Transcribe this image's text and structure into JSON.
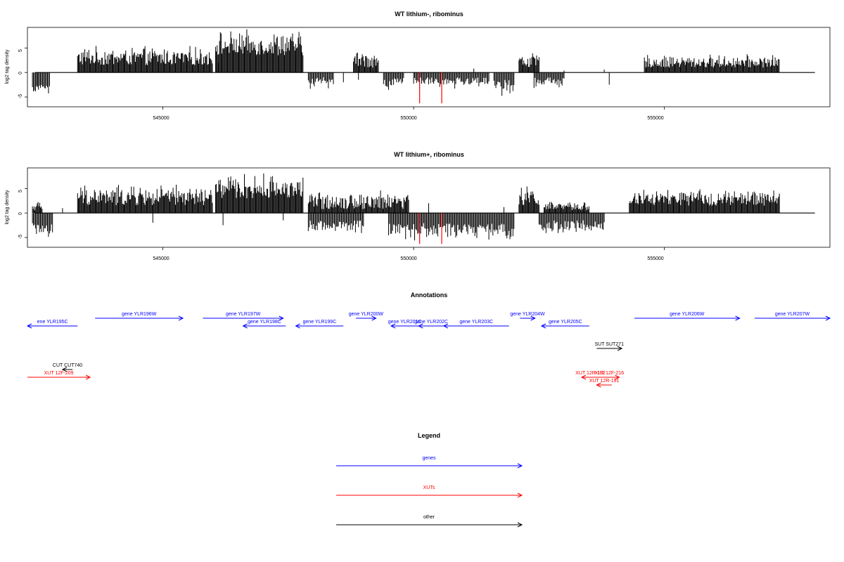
{
  "colors": {
    "gene": "#0000ff",
    "xut": "#ff0000",
    "other": "#000000",
    "bar": "#000000",
    "highlight": "#ff0000"
  },
  "panels": [
    {
      "title": "WT lithium-, ribominus",
      "ylabel": "log2 tag density",
      "y_ticks": [
        "-5",
        "0",
        "5"
      ],
      "x_ticks": [
        {
          "value": 545000,
          "label": "545000"
        },
        {
          "value": 550000,
          "label": "550000"
        },
        {
          "value": 555000,
          "label": "555000"
        }
      ],
      "xlim": [
        542300,
        558300
      ],
      "ylim": [
        -7,
        9.2
      ],
      "highlight_positions": [
        550120,
        550560
      ],
      "highlight_value": -6.3,
      "plus_regions": [
        {
          "start": 543300,
          "end": 546000,
          "hi": 5.5,
          "lo": 1.5
        },
        {
          "start": 546050,
          "end": 547800,
          "hi": 8.8,
          "lo": 3.5
        },
        {
          "start": 548800,
          "end": 549300,
          "hi": 5.0,
          "lo": 1.0
        },
        {
          "start": 552100,
          "end": 552500,
          "hi": 4.3,
          "lo": 1.0
        },
        {
          "start": 554600,
          "end": 557300,
          "hi": 3.8,
          "lo": 1.0
        }
      ],
      "sparse_plus": [
        {
          "x": 546100,
          "v": 2.0
        },
        {
          "x": 551200,
          "v": 0.8
        },
        {
          "x": 553000,
          "v": 0.4
        },
        {
          "x": 553800,
          "v": 0.6
        }
      ],
      "minus_regions": [
        {
          "start": 542400,
          "end": 542750,
          "lo": -4.5,
          "hi": -2.5
        },
        {
          "start": 547900,
          "end": 548400,
          "lo": -4.0,
          "hi": -1.0
        },
        {
          "start": 549400,
          "end": 549800,
          "lo": -4.2,
          "hi": -1.0
        },
        {
          "start": 550000,
          "end": 551500,
          "lo": -3.5,
          "hi": -1.0
        },
        {
          "start": 551600,
          "end": 552000,
          "lo": -5.4,
          "hi": -1.5
        },
        {
          "start": 552400,
          "end": 553000,
          "lo": -3.5,
          "hi": -1.0
        }
      ],
      "sparse_minus": [
        {
          "x": 542500,
          "v": -3.0
        },
        {
          "x": 548600,
          "v": -2.0
        },
        {
          "x": 548900,
          "v": -1.5
        },
        {
          "x": 553900,
          "v": -2.5
        }
      ]
    },
    {
      "title": "WT lithium+, ribominus",
      "ylabel": "log2 tag density",
      "y_ticks": [
        "-5",
        "0",
        "5"
      ],
      "x_ticks": [
        {
          "value": 545000,
          "label": "545000"
        },
        {
          "value": 550000,
          "label": "550000"
        },
        {
          "value": 555000,
          "label": "555000"
        }
      ],
      "xlim": [
        542300,
        558300
      ],
      "ylim": [
        -7,
        9.2
      ],
      "highlight_positions": [
        550120,
        550560
      ],
      "highlight_value": -6.3,
      "plus_regions": [
        {
          "start": 542400,
          "end": 542600,
          "hi": 2.5,
          "lo": 0.5
        },
        {
          "start": 543300,
          "end": 546000,
          "hi": 6.0,
          "lo": 1.5
        },
        {
          "start": 546050,
          "end": 547800,
          "hi": 8.2,
          "lo": 3.0
        },
        {
          "start": 547900,
          "end": 549900,
          "hi": 4.8,
          "lo": 0.8
        },
        {
          "start": 552100,
          "end": 552500,
          "hi": 5.8,
          "lo": 1.5
        },
        {
          "start": 552600,
          "end": 553500,
          "hi": 2.5,
          "lo": 0.5
        },
        {
          "start": 554300,
          "end": 557300,
          "hi": 5.0,
          "lo": 1.5
        }
      ],
      "sparse_plus": [
        {
          "x": 543000,
          "v": 1.0
        },
        {
          "x": 550300,
          "v": 2.0
        },
        {
          "x": 551800,
          "v": 1.2
        }
      ],
      "minus_regions": [
        {
          "start": 542400,
          "end": 542800,
          "lo": -5.5,
          "hi": -2.0
        },
        {
          "start": 547900,
          "end": 549000,
          "lo": -4.5,
          "hi": -1.5
        },
        {
          "start": 549500,
          "end": 552000,
          "lo": -6.0,
          "hi": -2.0
        },
        {
          "start": 552500,
          "end": 553800,
          "lo": -4.8,
          "hi": -1.5
        }
      ],
      "sparse_minus": [
        {
          "x": 544800,
          "v": -2.0
        },
        {
          "x": 546200,
          "v": -2.5
        },
        {
          "x": 547400,
          "v": -1.5
        }
      ]
    }
  ],
  "annotations": {
    "title": "Annotations",
    "features": [
      {
        "label": "ene YLR195C",
        "type": "gene",
        "strand": "-",
        "start": 542300,
        "end": 543300,
        "row": 2
      },
      {
        "label": "gene YLR196W",
        "type": "gene",
        "strand": "+",
        "start": 543650,
        "end": 545400,
        "row": 1
      },
      {
        "label": "gene YLR197W",
        "type": "gene",
        "strand": "+",
        "start": 545800,
        "end": 547400,
        "row": 1
      },
      {
        "label": "gene YLR198C",
        "type": "gene",
        "strand": "-",
        "start": 546600,
        "end": 547450,
        "row": 2
      },
      {
        "label": "gene YLR199C",
        "type": "gene",
        "strand": "-",
        "start": 547650,
        "end": 548600,
        "row": 2
      },
      {
        "label": "gene YLR200W",
        "type": "gene",
        "strand": "+",
        "start": 548850,
        "end": 549250,
        "row": 1
      },
      {
        "label": "gene YLR201C",
        "type": "gene",
        "strand": "-",
        "start": 549550,
        "end": 550100,
        "row": 2
      },
      {
        "label": "gene YLR202C",
        "type": "gene",
        "strand": "-",
        "start": 550100,
        "end": 550600,
        "row": 2
      },
      {
        "label": "gene YLR203C",
        "type": "gene",
        "strand": "-",
        "start": 550600,
        "end": 551900,
        "row": 2
      },
      {
        "label": "gene YLR204W",
        "type": "gene",
        "strand": "+",
        "start": 552120,
        "end": 552420,
        "row": 1
      },
      {
        "label": "gene YLR205C",
        "type": "gene",
        "strand": "-",
        "start": 552550,
        "end": 553500,
        "row": 2
      },
      {
        "label": "gene YLR206W",
        "type": "gene",
        "strand": "+",
        "start": 554400,
        "end": 556500,
        "row": 1
      },
      {
        "label": "gene YLR207W",
        "type": "gene",
        "strand": "+",
        "start": 556800,
        "end": 558300,
        "row": 1
      },
      {
        "label": "SUT SUT271",
        "type": "other",
        "strand": "+",
        "start": 553650,
        "end": 554150,
        "row": 3
      },
      {
        "label": "CUT CUT740",
        "type": "other",
        "strand": "-",
        "start": 543000,
        "end": 543200,
        "row": 4
      },
      {
        "label": "XUT 12F-209",
        "type": "xut",
        "strand": "+",
        "start": 542300,
        "end": 543550,
        "row": 5
      },
      {
        "label": "XUT 12R-152",
        "type": "xut",
        "strand": "-",
        "start": 553350,
        "end": 553700,
        "row": 5
      },
      {
        "label": "XUT 12F-216",
        "type": "xut",
        "strand": "+",
        "start": 553700,
        "end": 554100,
        "row": 5
      },
      {
        "label": "XUT 12R-191",
        "type": "xut",
        "strand": "-",
        "start": 553650,
        "end": 553950,
        "row": 6
      }
    ]
  },
  "legend": {
    "title": "Legend",
    "items": [
      {
        "label": "genes",
        "type": "gene"
      },
      {
        "label": "XUTs",
        "type": "xut"
      },
      {
        "label": "other",
        "type": "other"
      }
    ]
  }
}
